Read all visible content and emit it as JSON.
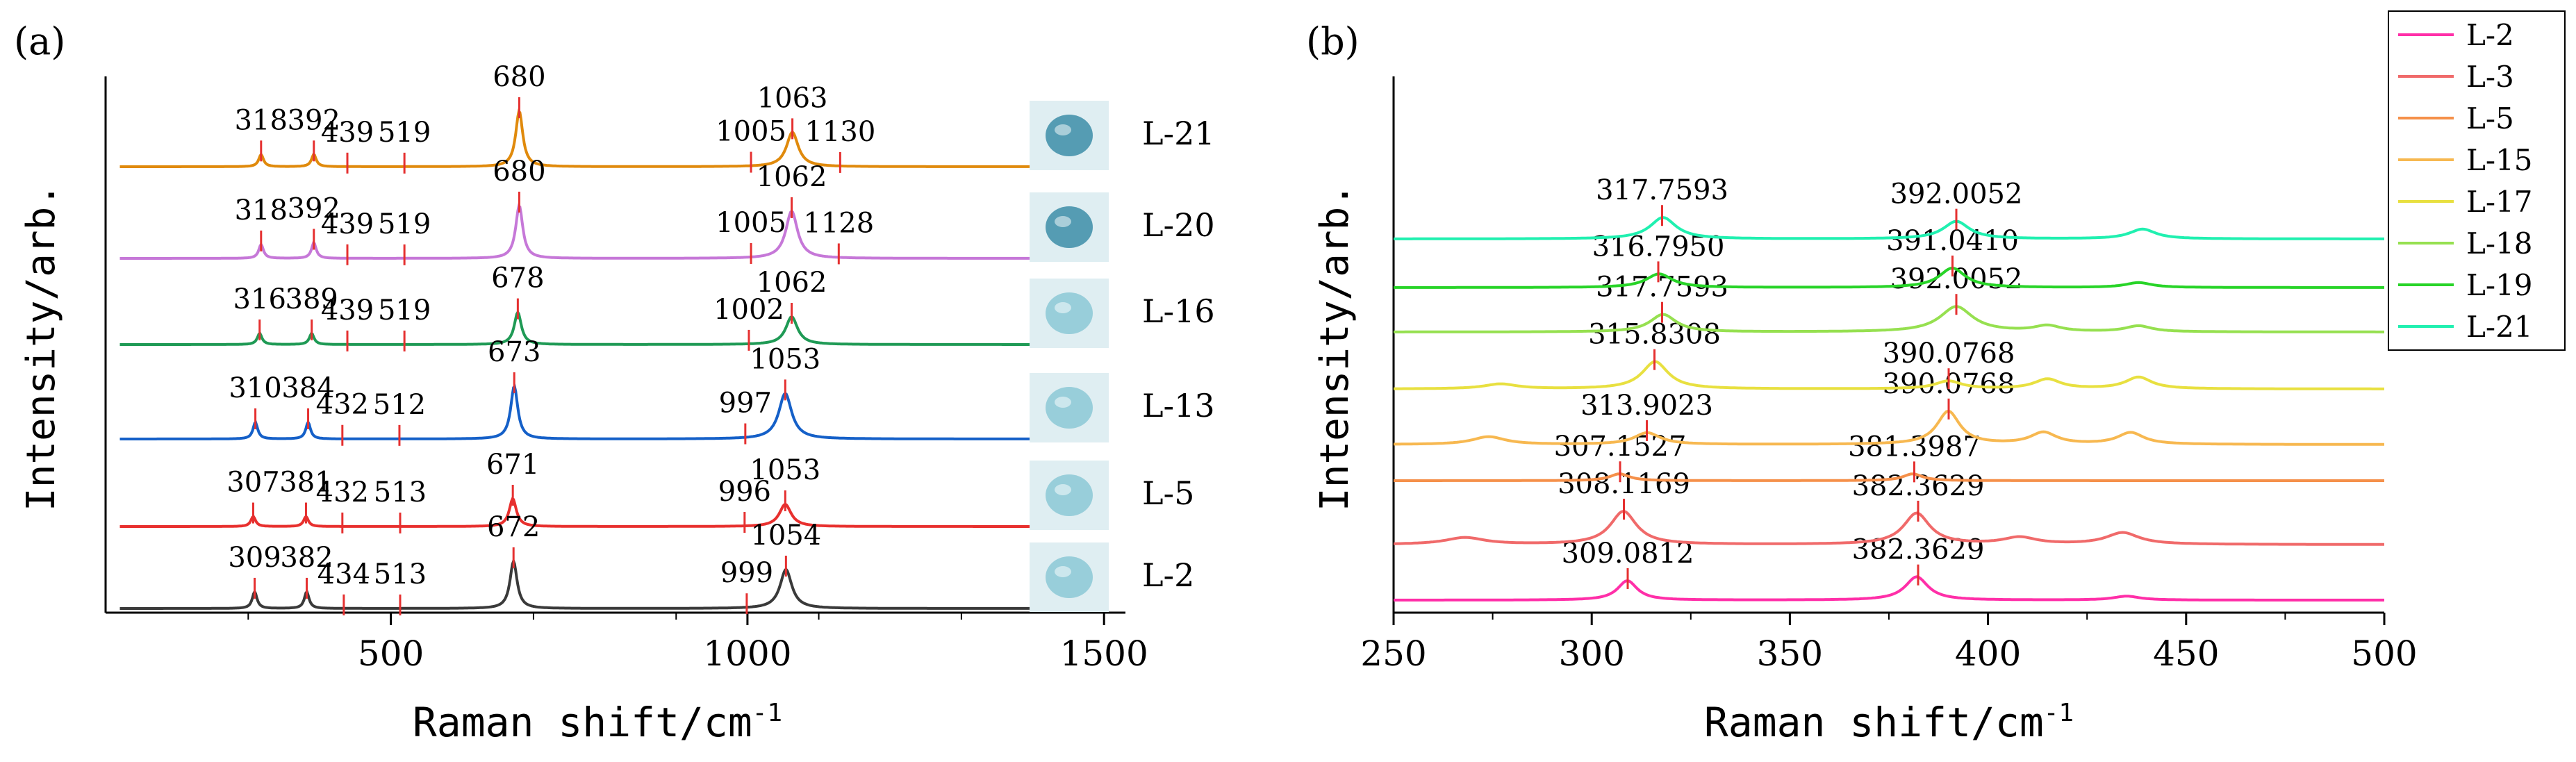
{
  "panel_labels": [
    "(a)",
    "(b)"
  ],
  "chart_data": [
    {
      "type": "line",
      "id": "a",
      "xlabel": "Raman shift/cm",
      "xlabel_sup": "-1",
      "ylabel": "Intensity/arb.",
      "xlim": [
        100,
        1530
      ],
      "xticks": [
        500,
        1000,
        1500
      ],
      "series": [
        {
          "name": "L-21",
          "color": "#e08a0c",
          "peaks": [
            {
              "x": 318,
              "label": "318"
            },
            {
              "x": 392,
              "label": "392"
            },
            {
              "x": 439,
              "label": "439"
            },
            {
              "x": 519,
              "label": "519"
            },
            {
              "x": 680,
              "label": "680"
            },
            {
              "x": 1005,
              "label": "1005"
            },
            {
              "x": 1063,
              "label": "1063"
            },
            {
              "x": 1130,
              "label": "1130"
            }
          ],
          "bands": [
            {
              "c": 318,
              "w": 4,
              "h": 0.22
            },
            {
              "c": 392,
              "w": 4,
              "h": 0.22
            },
            {
              "c": 680,
              "w": 6,
              "h": 1.0
            },
            {
              "c": 1063,
              "w": 10,
              "h": 0.62
            }
          ]
        },
        {
          "name": "L-20",
          "color": "#c678d8",
          "peaks": [
            {
              "x": 318,
              "label": "318"
            },
            {
              "x": 392,
              "label": "392"
            },
            {
              "x": 439,
              "label": "439"
            },
            {
              "x": 519,
              "label": "519"
            },
            {
              "x": 680,
              "label": "680"
            },
            {
              "x": 1005,
              "label": "1005"
            },
            {
              "x": 1062,
              "label": "1062"
            },
            {
              "x": 1128,
              "label": "1128"
            }
          ],
          "bands": [
            {
              "c": 318,
              "w": 4,
              "h": 0.25
            },
            {
              "c": 392,
              "w": 4,
              "h": 0.28
            },
            {
              "c": 680,
              "w": 6,
              "h": 0.95
            },
            {
              "c": 1062,
              "w": 10,
              "h": 0.85
            }
          ]
        },
        {
          "name": "L-16",
          "color": "#1f9a55",
          "peaks": [
            {
              "x": 316,
              "label": "316"
            },
            {
              "x": 389,
              "label": "389"
            },
            {
              "x": 439,
              "label": "439"
            },
            {
              "x": 519,
              "label": "519"
            },
            {
              "x": 678,
              "label": "678"
            },
            {
              "x": 1002,
              "label": "1002"
            },
            {
              "x": 1062,
              "label": "1062"
            }
          ],
          "bands": [
            {
              "c": 316,
              "w": 4,
              "h": 0.2
            },
            {
              "c": 389,
              "w": 4,
              "h": 0.2
            },
            {
              "c": 678,
              "w": 6,
              "h": 0.58
            },
            {
              "c": 1062,
              "w": 10,
              "h": 0.5
            }
          ]
        },
        {
          "name": "L-13",
          "color": "#1560c8",
          "peaks": [
            {
              "x": 310,
              "label": "310"
            },
            {
              "x": 384,
              "label": "384"
            },
            {
              "x": 432,
              "label": "432"
            },
            {
              "x": 512,
              "label": "512"
            },
            {
              "x": 673,
              "label": "673"
            },
            {
              "x": 997,
              "label": "997"
            },
            {
              "x": 1053,
              "label": "1053"
            }
          ],
          "bands": [
            {
              "c": 310,
              "w": 4,
              "h": 0.3
            },
            {
              "c": 384,
              "w": 4,
              "h": 0.3
            },
            {
              "c": 673,
              "w": 6,
              "h": 0.95
            },
            {
              "c": 1053,
              "w": 11,
              "h": 0.82
            }
          ]
        },
        {
          "name": "L-5",
          "color": "#e8302e",
          "peaks": [
            {
              "x": 307,
              "label": "307"
            },
            {
              "x": 381,
              "label": "381"
            },
            {
              "x": 432,
              "label": "432"
            },
            {
              "x": 513,
              "label": "513"
            },
            {
              "x": 671,
              "label": "671"
            },
            {
              "x": 996,
              "label": "996"
            },
            {
              "x": 1053,
              "label": "1053"
            }
          ],
          "bands": [
            {
              "c": 307,
              "w": 4,
              "h": 0.18
            },
            {
              "c": 381,
              "w": 4,
              "h": 0.18
            },
            {
              "c": 671,
              "w": 6,
              "h": 0.5
            },
            {
              "c": 1053,
              "w": 10,
              "h": 0.4
            }
          ]
        },
        {
          "name": "L-2",
          "color": "#3a3a3a",
          "peaks": [
            {
              "x": 309,
              "label": "309"
            },
            {
              "x": 382,
              "label": "382"
            },
            {
              "x": 434,
              "label": "434"
            },
            {
              "x": 513,
              "label": "513"
            },
            {
              "x": 672,
              "label": "672"
            },
            {
              "x": 999,
              "label": "999"
            },
            {
              "x": 1054,
              "label": "1054"
            }
          ],
          "bands": [
            {
              "c": 309,
              "w": 4,
              "h": 0.3
            },
            {
              "c": 382,
              "w": 4,
              "h": 0.3
            },
            {
              "c": 672,
              "w": 6,
              "h": 0.85
            },
            {
              "c": 1054,
              "w": 10,
              "h": 0.7
            }
          ]
        }
      ]
    },
    {
      "type": "line",
      "id": "b",
      "xlabel": "Raman shift/cm",
      "xlabel_sup": "-1",
      "ylabel": "Intensity/arb.",
      "xlim": [
        250,
        500
      ],
      "xticks": [
        250,
        300,
        350,
        400,
        450,
        500
      ],
      "legend_position": "top-right",
      "series": [
        {
          "name": "L-2",
          "color": "#ff2fa8",
          "peaks": [
            {
              "x": 309.0812,
              "label": "309.0812"
            },
            {
              "x": 382.3629,
              "label": "382.3629"
            }
          ],
          "bands": [
            {
              "c": 309,
              "w": 3,
              "h": 1.0
            },
            {
              "c": 382,
              "w": 3.5,
              "h": 1.2
            },
            {
              "c": 435,
              "w": 4,
              "h": 0.2
            }
          ]
        },
        {
          "name": "L-3",
          "color": "#f06a6a",
          "peaks": [
            {
              "x": 308.1169,
              "label": "308.1169"
            },
            {
              "x": 382.3629,
              "label": "382.3629"
            }
          ],
          "bands": [
            {
              "c": 268,
              "w": 6,
              "h": 0.35
            },
            {
              "c": 308,
              "w": 4,
              "h": 1.7
            },
            {
              "c": 382,
              "w": 4,
              "h": 1.6
            },
            {
              "c": 408,
              "w": 5,
              "h": 0.35
            },
            {
              "c": 434,
              "w": 5,
              "h": 0.6
            }
          ]
        },
        {
          "name": "L-5",
          "color": "#f5904a",
          "peaks": [
            {
              "x": 307.1527,
              "label": "307.1527"
            },
            {
              "x": 381.3987,
              "label": "381.3987"
            }
          ],
          "bands": [
            {
              "c": 307,
              "w": 3,
              "h": 0.35
            },
            {
              "c": 381,
              "w": 3,
              "h": 0.35
            }
          ]
        },
        {
          "name": "L-15",
          "color": "#f7b850",
          "peaks": [
            {
              "x": 313.9023,
              "label": "313.9023"
            },
            {
              "x": 390.0768,
              "label": "390.0768"
            }
          ],
          "bands": [
            {
              "c": 274,
              "w": 5,
              "h": 0.4
            },
            {
              "c": 314,
              "w": 4,
              "h": 0.6
            },
            {
              "c": 390,
              "w": 3.5,
              "h": 1.7
            },
            {
              "c": 414,
              "w": 4,
              "h": 0.6
            },
            {
              "c": 436,
              "w": 4,
              "h": 0.6
            }
          ]
        },
        {
          "name": "L-17",
          "color": "#e8e040",
          "peaks": [
            {
              "x": 315.8308,
              "label": "315.8308"
            },
            {
              "x": 390.0768,
              "label": "390.0768"
            }
          ],
          "bands": [
            {
              "c": 277,
              "w": 5,
              "h": 0.25
            },
            {
              "c": 316,
              "w": 4,
              "h": 1.4
            },
            {
              "c": 390,
              "w": 4,
              "h": 0.4
            },
            {
              "c": 415,
              "w": 4,
              "h": 0.5
            },
            {
              "c": 438,
              "w": 4,
              "h": 0.6
            }
          ]
        },
        {
          "name": "L-18",
          "color": "#96e050",
          "peaks": [
            {
              "x": 317.7593,
              "label": "317.7593"
            },
            {
              "x": 392.0052,
              "label": "392.0052"
            }
          ],
          "bands": [
            {
              "c": 318,
              "w": 4,
              "h": 0.9
            },
            {
              "c": 392,
              "w": 5,
              "h": 1.3
            },
            {
              "c": 415,
              "w": 4,
              "h": 0.3
            },
            {
              "c": 438,
              "w": 4,
              "h": 0.3
            }
          ]
        },
        {
          "name": "L-19",
          "color": "#28d428",
          "peaks": [
            {
              "x": 316.795,
              "label": "316.7950"
            },
            {
              "x": 391.041,
              "label": "391.0410"
            }
          ],
          "bands": [
            {
              "c": 317,
              "w": 4,
              "h": 0.7
            },
            {
              "c": 391,
              "w": 4,
              "h": 1.0
            },
            {
              "c": 438,
              "w": 4,
              "h": 0.25
            }
          ]
        },
        {
          "name": "L-21",
          "color": "#20f0b0",
          "peaks": [
            {
              "x": 317.7593,
              "label": "317.7593"
            },
            {
              "x": 392.0052,
              "label": "392.0052"
            }
          ],
          "bands": [
            {
              "c": 318,
              "w": 4,
              "h": 1.1
            },
            {
              "c": 392,
              "w": 4,
              "h": 0.9
            },
            {
              "c": 439,
              "w": 4,
              "h": 0.5
            }
          ]
        }
      ]
    }
  ]
}
